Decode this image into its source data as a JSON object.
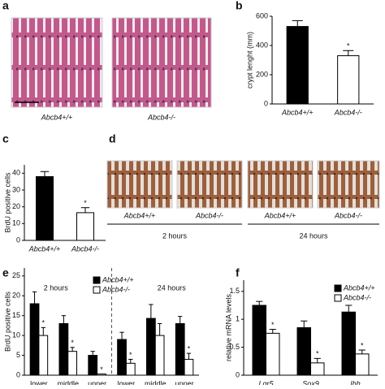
{
  "panels": [
    "a",
    "b",
    "c",
    "d",
    "e",
    "f"
  ],
  "image_a": {
    "captions": [
      "Abcb4+/+",
      "Abcb4-/-"
    ]
  },
  "image_d": {
    "captions": [
      "Abcb4+/+",
      "Abcb4-/-",
      "Abcb4+/+",
      "Abcb4-/-"
    ],
    "times": [
      "2 hours",
      "24 hours"
    ]
  },
  "chart_data": [
    {
      "type": "bar",
      "y_label": "crypt lenght (mm)",
      "categories": [
        "Abcb4+/+",
        "Abcb4-/-"
      ],
      "values": [
        530,
        330
      ],
      "errors": [
        40,
        35
      ],
      "colors": [
        "#000000",
        "#ffffff"
      ],
      "significance": [
        null,
        "*"
      ],
      "ylim": [
        0,
        600
      ],
      "yticks": [
        0,
        200,
        400,
        600
      ]
    },
    {
      "type": "bar",
      "y_label": "BrdU positive cells",
      "categories": [
        "Abcb4+/+",
        "Abcb4-/-"
      ],
      "values": [
        38,
        16.5
      ],
      "errors": [
        3,
        3
      ],
      "colors": [
        "#000000",
        "#ffffff"
      ],
      "significance": [
        null,
        "*"
      ],
      "ylim": [
        0,
        45
      ],
      "yticks": [
        0,
        10,
        20,
        30,
        40
      ]
    },
    {
      "type": "bar",
      "y_label": "BrdU positive cells",
      "categories": [
        "lower",
        "middle",
        "upper",
        "lower",
        "middle",
        "upper"
      ],
      "group_labels": [
        "2 hours",
        "24 hours"
      ],
      "series": [
        {
          "name": "Abcb4+/+",
          "color": "#000000",
          "values": [
            18,
            13,
            5,
            9,
            14.3,
            13
          ],
          "errors": [
            3,
            2,
            1,
            1.8,
            3.5,
            1.8
          ],
          "significance": [
            null,
            null,
            null,
            null,
            null,
            null
          ]
        },
        {
          "name": "Abcb4-/-",
          "color": "#ffffff",
          "values": [
            10,
            6,
            0.3,
            3,
            10,
            4
          ],
          "errors": [
            2,
            1,
            0,
            1,
            3,
            1.5
          ],
          "significance": [
            "*",
            "*",
            "*",
            "*",
            null,
            "*"
          ]
        }
      ],
      "ylim": [
        0,
        27
      ],
      "yticks": [
        0,
        5,
        10,
        15,
        20,
        25
      ]
    },
    {
      "type": "bar",
      "y_label": "relative mRNA levels",
      "categories": [
        "Lgr5",
        "Sox9",
        "Ihh"
      ],
      "series": [
        {
          "name": "Abcb4+/+",
          "color": "#000000",
          "values": [
            1.25,
            0.85,
            1.13
          ],
          "errors": [
            0.07,
            0.12,
            0.12
          ],
          "significance": [
            null,
            null,
            null
          ]
        },
        {
          "name": "Abcb4-/-",
          "color": "#ffffff",
          "values": [
            0.75,
            0.22,
            0.38
          ],
          "errors": [
            0.07,
            0.08,
            0.07
          ],
          "significance": [
            "*",
            "*",
            "*"
          ]
        }
      ],
      "ylim": [
        0,
        1.7
      ],
      "yticks": [
        0,
        {
          "value": 0.5,
          "label": "0.5"
        },
        1,
        {
          "value": 1.5,
          "label": "1.5"
        }
      ]
    }
  ]
}
